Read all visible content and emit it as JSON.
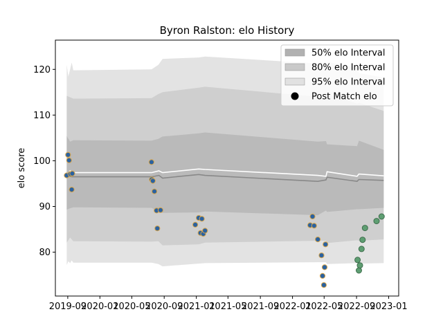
{
  "chart_data": {
    "type": "scatter",
    "title": "Byron Ralston: elo History",
    "xlabel": "",
    "ylabel": "elo score",
    "x_tick_labels": [
      "2019-09",
      "2020-01",
      "2020-05",
      "2020-09",
      "2021-01",
      "2021-05",
      "2021-09",
      "2022-01",
      "2022-05",
      "2022-09",
      "2023-01"
    ],
    "y_ticks": [
      80,
      90,
      100,
      110,
      120
    ],
    "xlim": [
      "2019-07-16",
      "2023-02-08"
    ],
    "ylim": [
      70.4,
      126.4
    ],
    "grid": false,
    "legend_position": "top-right",
    "legend": [
      {
        "label": "50% elo Interval",
        "kind": "patch",
        "color": "#b1b1b1"
      },
      {
        "label": "80% elo Interval",
        "kind": "patch",
        "color": "#c9c9c9"
      },
      {
        "label": "95% elo Interval",
        "kind": "patch",
        "color": "#e1e1e1"
      },
      {
        "label": "Post Match elo",
        "kind": "marker",
        "color": "#000000"
      }
    ],
    "colors": {
      "band95": "#e3e3e3",
      "band80": "#cfcfcf",
      "band50": "#bababa",
      "median_line": "#888888",
      "mean_line": "#ffffff",
      "point_fill_history": "#2b62a0",
      "point_edge_history": "#d9a54a",
      "point_fill_recent": "#5e9e72",
      "point_edge_recent": "#3f6e4d"
    },
    "series": [
      {
        "kind": "line",
        "role": "median",
        "points": [
          [
            "2019-08-28",
            96.5
          ],
          [
            "2019-09-05",
            96.6
          ],
          [
            "2019-09-18",
            96.5
          ],
          [
            "2020-07-15",
            96.5
          ],
          [
            "2020-08-12",
            96.8
          ],
          [
            "2020-08-26",
            96.2
          ],
          [
            "2021-01-10",
            97.0
          ],
          [
            "2021-02-03",
            96.8
          ],
          [
            "2022-04-07",
            95.5
          ],
          [
            "2022-05-08",
            95.8
          ],
          [
            "2022-05-12",
            96.4
          ],
          [
            "2022-09-03",
            95.5
          ],
          [
            "2022-09-10",
            95.9
          ],
          [
            "2022-12-13",
            95.7
          ]
        ]
      },
      {
        "kind": "line",
        "role": "mean",
        "points": [
          [
            "2019-08-28",
            96.6
          ],
          [
            "2019-09-10",
            97.8
          ],
          [
            "2019-09-18",
            97.4
          ],
          [
            "2020-07-15",
            97.4
          ],
          [
            "2020-08-12",
            97.8
          ],
          [
            "2020-08-26",
            97.4
          ],
          [
            "2021-01-10",
            98.2
          ],
          [
            "2021-02-03",
            98.1
          ],
          [
            "2022-04-07",
            96.8
          ],
          [
            "2022-05-08",
            96.6
          ],
          [
            "2022-05-12",
            97.6
          ],
          [
            "2022-09-03",
            96.6
          ],
          [
            "2022-09-10",
            97.1
          ],
          [
            "2022-12-13",
            96.7
          ]
        ]
      },
      {
        "kind": "band",
        "level": "95%",
        "points": [
          [
            "2019-08-28",
            77.2,
            121.0
          ],
          [
            "2019-09-03",
            78.0,
            118.4
          ],
          [
            "2019-09-10",
            77.6,
            120.0
          ],
          [
            "2019-09-16",
            78.2,
            121.5
          ],
          [
            "2019-09-22",
            77.7,
            119.8
          ],
          [
            "2020-07-15",
            77.7,
            120.0
          ],
          [
            "2020-08-10",
            77.4,
            121.0
          ],
          [
            "2020-08-26",
            76.9,
            122.3
          ],
          [
            "2021-01-10",
            77.5,
            122.6
          ],
          [
            "2021-02-03",
            77.6,
            122.8
          ],
          [
            "2022-04-07",
            77.8,
            121.3
          ],
          [
            "2022-05-08",
            77.8,
            120.3
          ],
          [
            "2022-05-12",
            77.4,
            121.6
          ],
          [
            "2022-09-03",
            77.6,
            120.4
          ],
          [
            "2022-09-10",
            77.5,
            119.2
          ],
          [
            "2022-12-13",
            77.6,
            118.2
          ]
        ]
      },
      {
        "kind": "band",
        "level": "80%",
        "points": [
          [
            "2019-08-28",
            82.1,
            114.2
          ],
          [
            "2019-09-10",
            83.2,
            113.9
          ],
          [
            "2019-09-22",
            82.4,
            113.6
          ],
          [
            "2020-07-15",
            82.3,
            113.7
          ],
          [
            "2020-08-10",
            82.4,
            114.6
          ],
          [
            "2020-08-26",
            81.5,
            115.0
          ],
          [
            "2021-01-10",
            81.7,
            116.0
          ],
          [
            "2021-02-03",
            82.1,
            116.2
          ],
          [
            "2022-04-07",
            82.5,
            114.0
          ],
          [
            "2022-05-08",
            82.5,
            113.7
          ],
          [
            "2022-05-12",
            82.0,
            114.6
          ],
          [
            "2022-09-03",
            82.6,
            112.5
          ],
          [
            "2022-09-10",
            82.5,
            112.7
          ],
          [
            "2022-12-13",
            82.8,
            110.9
          ]
        ]
      },
      {
        "kind": "band",
        "level": "50%",
        "points": [
          [
            "2019-08-28",
            89.3,
            105.4
          ],
          [
            "2019-09-10",
            89.6,
            104.2
          ],
          [
            "2019-09-22",
            89.8,
            104.5
          ],
          [
            "2020-07-15",
            89.7,
            104.4
          ],
          [
            "2020-08-10",
            88.9,
            104.8
          ],
          [
            "2020-08-26",
            88.6,
            105.3
          ],
          [
            "2021-01-10",
            88.7,
            106.0
          ],
          [
            "2021-02-03",
            88.9,
            106.2
          ],
          [
            "2022-04-07",
            88.1,
            104.2
          ],
          [
            "2022-05-08",
            89.1,
            104.3
          ],
          [
            "2022-05-12",
            88.8,
            103.6
          ],
          [
            "2022-09-03",
            89.4,
            103.2
          ],
          [
            "2022-09-10",
            89.4,
            104.4
          ],
          [
            "2022-12-13",
            89.7,
            102.4
          ]
        ]
      },
      {
        "kind": "scatter",
        "name": "Post Match elo",
        "group": "history",
        "points": [
          [
            "2019-08-28",
            96.8
          ],
          [
            "2019-09-02",
            101.3
          ],
          [
            "2019-09-06",
            100.1
          ],
          [
            "2019-09-11",
            97.1
          ],
          [
            "2019-09-16",
            93.7
          ],
          [
            "2019-09-18",
            97.2
          ],
          [
            "2020-07-15",
            99.7
          ],
          [
            "2020-07-16",
            95.9
          ],
          [
            "2020-07-20",
            95.6
          ],
          [
            "2020-07-26",
            93.3
          ],
          [
            "2020-08-03",
            89.1
          ],
          [
            "2020-08-06",
            85.2
          ],
          [
            "2020-08-18",
            89.2
          ],
          [
            "2020-12-28",
            86.0
          ],
          [
            "2021-01-10",
            87.5
          ],
          [
            "2021-01-17",
            84.2
          ],
          [
            "2021-01-22",
            87.3
          ],
          [
            "2021-01-27",
            84.0
          ],
          [
            "2021-02-03",
            84.7
          ],
          [
            "2022-03-09",
            85.9
          ],
          [
            "2022-03-18",
            87.8
          ],
          [
            "2022-03-24",
            85.8
          ],
          [
            "2022-04-07",
            82.8
          ],
          [
            "2022-04-21",
            79.3
          ],
          [
            "2022-04-25",
            74.8
          ],
          [
            "2022-04-30",
            72.8
          ],
          [
            "2022-05-03",
            76.7
          ],
          [
            "2022-05-06",
            81.7
          ]
        ]
      },
      {
        "kind": "scatter",
        "name": "Post Match elo",
        "group": "recent",
        "points": [
          [
            "2022-09-05",
            78.3
          ],
          [
            "2022-09-10",
            76.0
          ],
          [
            "2022-09-14",
            77.1
          ],
          [
            "2022-09-20",
            80.7
          ],
          [
            "2022-09-24",
            82.7
          ],
          [
            "2022-10-03",
            85.3
          ],
          [
            "2022-11-16",
            86.8
          ],
          [
            "2022-12-05",
            87.8
          ]
        ]
      }
    ]
  }
}
